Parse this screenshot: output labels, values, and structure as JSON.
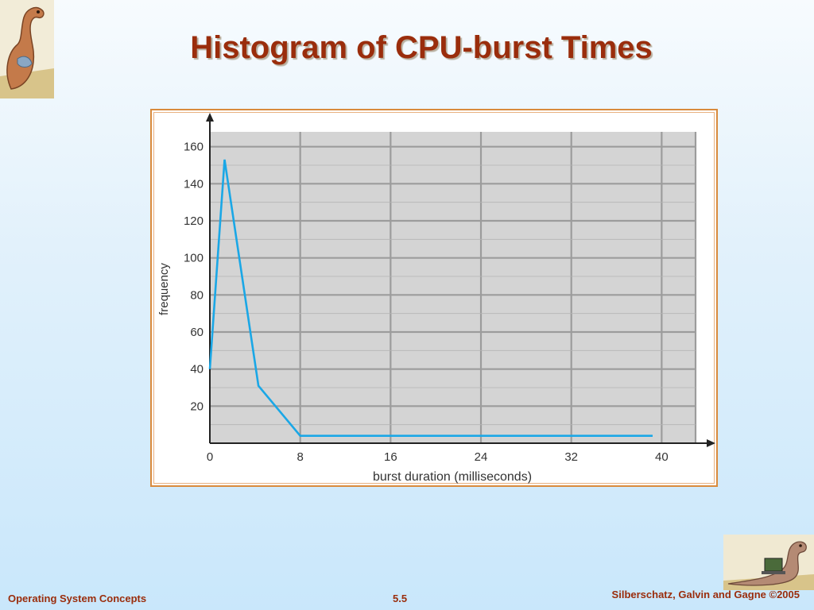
{
  "slide": {
    "title": "Histogram of CPU-burst Times"
  },
  "footer": {
    "left": "Operating System Concepts",
    "center": "5.5",
    "right": "Silberschatz, Galvin and Gagne ©2005"
  },
  "colors": {
    "title": "#9a2d0c",
    "frame": "#d98a3c",
    "plot_bg": "#d4d4d4",
    "grid": "#9c9c9c",
    "line": "#1aa7e6"
  },
  "chart_data": {
    "type": "line",
    "title": "",
    "xlabel": "burst duration (milliseconds)",
    "ylabel": "frequency",
    "xlim": [
      0,
      43
    ],
    "ylim": [
      0,
      168
    ],
    "xticks": [
      0,
      8,
      16,
      24,
      32,
      40
    ],
    "yticks": [
      20,
      40,
      60,
      80,
      100,
      120,
      140,
      160
    ],
    "grid": true,
    "series": [
      {
        "x": [
          0,
          1.3,
          4.3,
          8,
          39.2
        ],
        "y": [
          40,
          153,
          31,
          4,
          4
        ]
      }
    ]
  }
}
